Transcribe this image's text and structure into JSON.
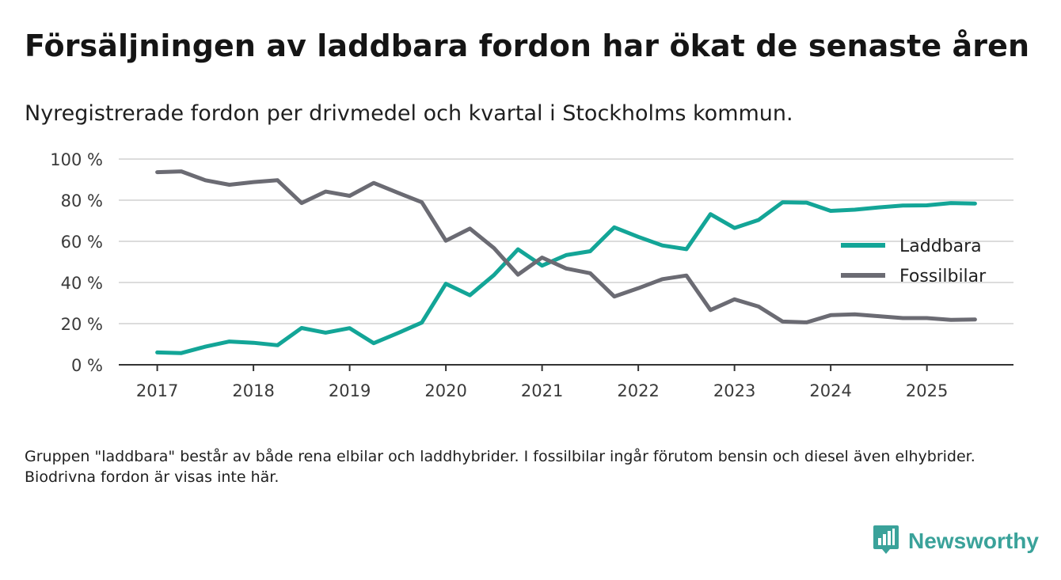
{
  "header": {
    "title": "Försäljningen av laddbara fordon har ökat de senaste åren",
    "subtitle": "Nyregistrerade fordon per drivmedel och kvartal i Stockholms kommun."
  },
  "footnote": "Gruppen \"laddbara\" består av både rena elbilar och laddhybrider. I fossilbilar ingår förutom bensin och diesel även elhybrider. Biodrivna fordon är visas inte här.",
  "brand": {
    "name": "Newsworthy",
    "icon": "bar-chart-icon",
    "color": "#3aa29a"
  },
  "chart_data": {
    "type": "line",
    "title": "Försäljningen av laddbara fordon har ökat de senaste åren",
    "subtitle": "Nyregistrerade fordon per drivmedel och kvartal i Stockholms kommun.",
    "xlabel": "",
    "ylabel": "",
    "xlim": [
      2016.6,
      2025.9
    ],
    "ylim": [
      0,
      100
    ],
    "x_ticks": [
      2017,
      2018,
      2019,
      2020,
      2021,
      2022,
      2023,
      2024,
      2025
    ],
    "x_tick_labels": [
      "2017",
      "2018",
      "2019",
      "2020",
      "2021",
      "2022",
      "2023",
      "2024",
      "2025"
    ],
    "y_ticks": [
      0,
      20,
      40,
      60,
      80,
      100
    ],
    "y_tick_labels": [
      "0 %",
      "20 %",
      "40 %",
      "60 %",
      "80 %",
      "100 %"
    ],
    "grid": true,
    "legend_position": "right",
    "x": [
      2017.0,
      2017.25,
      2017.5,
      2017.75,
      2018.0,
      2018.25,
      2018.5,
      2018.75,
      2019.0,
      2019.25,
      2019.5,
      2019.75,
      2020.0,
      2020.25,
      2020.5,
      2020.75,
      2021.0,
      2021.25,
      2021.5,
      2021.75,
      2022.0,
      2022.25,
      2022.5,
      2022.75,
      2023.0,
      2023.25,
      2023.5,
      2023.75,
      2024.0,
      2024.25,
      2024.5,
      2024.75,
      2025.0,
      2025.25,
      2025.5
    ],
    "series": [
      {
        "name": "Laddbara",
        "color": "#13a597",
        "values": [
          6,
          5.7,
          8.8,
          11.3,
          10.7,
          9.5,
          17.9,
          15.6,
          17.8,
          10.5,
          15.4,
          20.5,
          39.4,
          33.8,
          43.6,
          56.1,
          48.2,
          53.3,
          55.2,
          66.8,
          62.2,
          58.0,
          56.2,
          73.2,
          66.5,
          70.4,
          79.0,
          78.8,
          74.8,
          75.4,
          76.5,
          77.4,
          77.5,
          78.6,
          78.4
        ]
      },
      {
        "name": "Fossilbilar",
        "color": "#6b6b73",
        "values": [
          93.6,
          94.0,
          89.7,
          87.5,
          88.8,
          89.7,
          78.6,
          84.2,
          82.1,
          88.4,
          83.6,
          79.0,
          60.3,
          66.2,
          56.7,
          43.8,
          52.1,
          46.8,
          44.5,
          33.2,
          37.2,
          41.6,
          43.4,
          26.6,
          31.8,
          28.3,
          21.0,
          20.6,
          24.1,
          24.5,
          23.6,
          22.7,
          22.7,
          21.8,
          22.0
        ]
      }
    ]
  }
}
